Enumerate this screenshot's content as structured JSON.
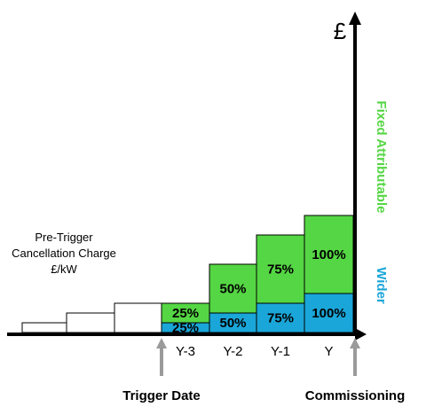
{
  "chart_data": {
    "type": "bar",
    "stacked": true,
    "currency_symbol": "£",
    "pre_trigger_label": [
      "Pre-Trigger",
      "Cancellation Charge",
      "£/kW"
    ],
    "pre_trigger_steps": [
      1,
      2,
      3
    ],
    "categories": [
      "Y-3",
      "Y-2",
      "Y-1",
      "Y"
    ],
    "series": [
      {
        "name": "Wider",
        "color": "#1aa6d8",
        "values": [
          1,
          2,
          3,
          4
        ],
        "labels": [
          "25%",
          "50%",
          "75%",
          "100%"
        ]
      },
      {
        "name": "Fixed Attributable",
        "color": "#55d644",
        "values": [
          2,
          5,
          7,
          8
        ],
        "labels": [
          "25%",
          "50%",
          "75%",
          "100%"
        ]
      }
    ],
    "markers": [
      {
        "label": "Trigger Date",
        "position": "Y-3"
      },
      {
        "label": "Commissioning",
        "position": "Y"
      }
    ],
    "colors": {
      "wider": "#1aa6d8",
      "fixed": "#55d644",
      "marker_arrow": "#9a9a9a"
    }
  }
}
